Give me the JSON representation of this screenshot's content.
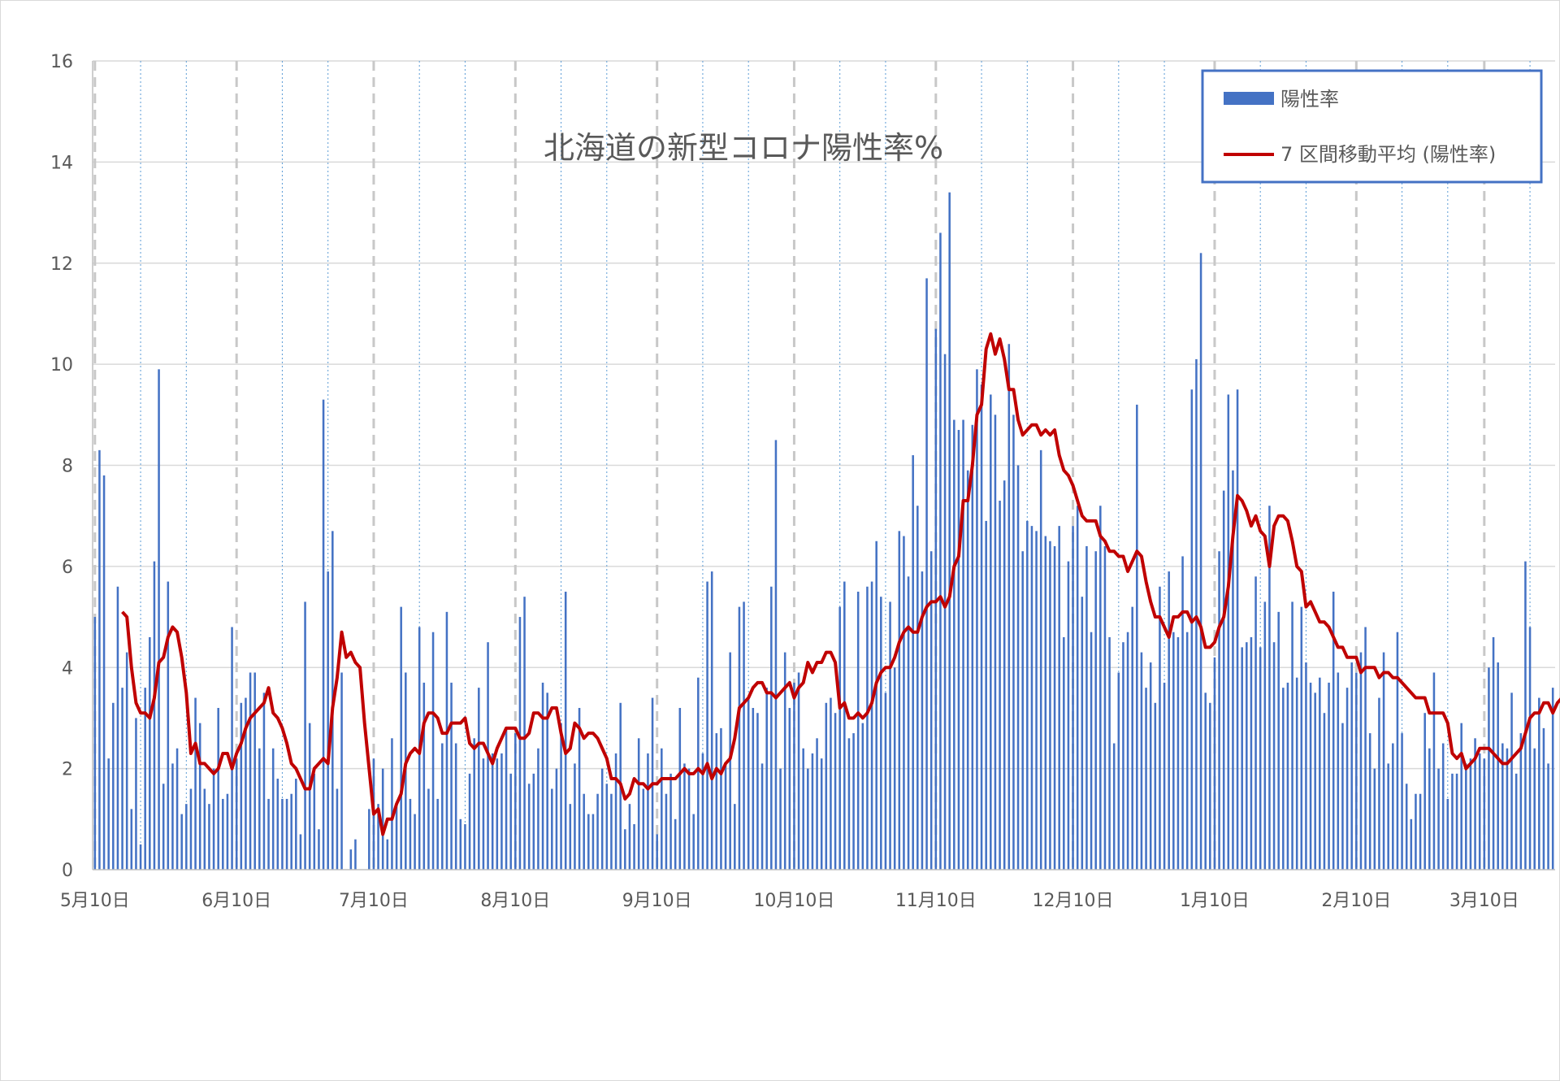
{
  "chart_data": {
    "type": "bar",
    "title": "北海道の新型コロナ陽性率%",
    "xlabel": "",
    "ylabel": "",
    "ylim": [
      0,
      16
    ],
    "yticks": [
      0,
      2,
      4,
      6,
      8,
      10,
      12,
      14,
      16
    ],
    "x_tick_labels": [
      "5月10日",
      "6月10日",
      "7月10日",
      "8月10日",
      "9月10日",
      "10月10日",
      "11月10日",
      "12月10日",
      "1月10日",
      "2月10日",
      "3月10日"
    ],
    "x_tick_day_index": [
      0,
      31,
      61,
      92,
      123,
      153,
      184,
      214,
      245,
      276,
      304
    ],
    "grid": "horizontal",
    "legend": {
      "position": "top-right",
      "entries": [
        "陽性率",
        "7 区間移動平均 (陽性率)"
      ]
    },
    "colors": {
      "bar": "#4472c4",
      "line": "#c00000",
      "legend_border": "#4472c4"
    },
    "series": [
      {
        "name": "陽性率",
        "type": "bar",
        "values": [
          5.0,
          8.3,
          7.8,
          2.2,
          3.3,
          5.6,
          3.6,
          4.3,
          1.2,
          3.0,
          0.5,
          3.6,
          4.6,
          6.1,
          9.9,
          1.7,
          5.7,
          2.1,
          2.4,
          1.1,
          1.3,
          1.6,
          3.4,
          2.9,
          1.6,
          1.3,
          2.0,
          3.2,
          1.4,
          1.5,
          4.8,
          2.2,
          3.3,
          3.4,
          3.9,
          3.9,
          2.4,
          3.5,
          1.4,
          2.4,
          1.8,
          1.4,
          1.4,
          1.5,
          1.8,
          0.7,
          5.3,
          2.9,
          1.9,
          0.8,
          9.3,
          5.9,
          6.7,
          1.6,
          3.9,
          0.0,
          0.4,
          0.6,
          0.0,
          0.0,
          1.2,
          2.2,
          1.3,
          2.0,
          0.6,
          2.6,
          1.3,
          5.2,
          3.9,
          1.4,
          1.1,
          4.8,
          3.7,
          1.6,
          4.7,
          1.4,
          2.5,
          5.1,
          3.7,
          2.5,
          1.0,
          0.9,
          1.9,
          2.6,
          3.6,
          2.2,
          4.5,
          2.3,
          2.2,
          2.3,
          2.8,
          1.9,
          2.7,
          5.0,
          5.4,
          1.7,
          1.9,
          2.4,
          3.7,
          3.5,
          1.6,
          2.0,
          2.9,
          5.5,
          1.3,
          2.1,
          3.2,
          1.5,
          1.1,
          1.1,
          1.5,
          2.0,
          1.7,
          1.5,
          2.3,
          3.3,
          0.8,
          1.3,
          0.9,
          2.6,
          1.6,
          2.3,
          3.4,
          0.7,
          2.4,
          1.5,
          1.9,
          1.0,
          3.2,
          2.1,
          2.0,
          1.1,
          3.8,
          2.3,
          5.7,
          5.9,
          2.7,
          2.8,
          2.1,
          4.3,
          1.3,
          5.2,
          5.3,
          3.4,
          3.2,
          3.1,
          2.1,
          3.6,
          5.6,
          8.5,
          2.0,
          4.3,
          3.2,
          3.7,
          3.9,
          2.4,
          2.0,
          2.3,
          2.6,
          2.2,
          3.3,
          3.4,
          3.1,
          5.2,
          5.7,
          2.6,
          2.7,
          5.5,
          2.9,
          5.6,
          5.7,
          6.5,
          5.4,
          3.5,
          5.3,
          4.0,
          6.7,
          6.6,
          5.8,
          8.2,
          7.2,
          5.9,
          11.7,
          6.3,
          10.7,
          12.6,
          10.2,
          13.4,
          8.9,
          8.7,
          8.9,
          7.9,
          8.8,
          9.9,
          9.6,
          6.9,
          9.4,
          9.0,
          7.3,
          7.7,
          10.4,
          9.0,
          8.0,
          6.3,
          6.9,
          6.8,
          6.7,
          8.3,
          6.6,
          6.5,
          6.4,
          6.8,
          4.6,
          6.1,
          6.8,
          7.2,
          5.4,
          6.4,
          4.7,
          6.3,
          7.2,
          6.4,
          4.6,
          2.5,
          3.9,
          4.5,
          4.7,
          5.2,
          9.2,
          4.3,
          3.6,
          4.1,
          3.3,
          5.6,
          3.7,
          5.9,
          4.7,
          4.6,
          6.2,
          4.7,
          9.5,
          10.1,
          12.2,
          3.5,
          3.3,
          4.2,
          6.3,
          7.5,
          9.4,
          7.9,
          9.5,
          4.4,
          4.5,
          4.6,
          5.8,
          4.4,
          5.3,
          7.2,
          4.5,
          5.1,
          3.6,
          3.7,
          5.3,
          3.8,
          5.2,
          4.1,
          3.7,
          3.5,
          3.8,
          3.1,
          3.7,
          5.5,
          3.9,
          2.9,
          3.6,
          4.1,
          3.9,
          4.3,
          4.8,
          2.7,
          2.0,
          3.4,
          4.3,
          2.1,
          2.5,
          4.7,
          2.7,
          1.7,
          1.0,
          1.5,
          1.5,
          3.1,
          2.4,
          3.9,
          2.0,
          2.5,
          1.4,
          1.9,
          1.9,
          2.9,
          2.1,
          2.2,
          2.6,
          2.3,
          2.2,
          4.0,
          4.6,
          4.1,
          2.5,
          2.4,
          3.5,
          1.9,
          2.7,
          6.1,
          4.8,
          2.4,
          3.4,
          2.8,
          2.1,
          3.6
        ]
      },
      {
        "name": "7 区間移動平均 (陽性率)",
        "type": "line",
        "start_index": 6,
        "values": [
          5.1,
          5.0,
          4.0,
          3.3,
          3.1,
          3.1,
          3.0,
          3.4,
          4.1,
          4.2,
          4.6,
          4.8,
          4.7,
          4.2,
          3.5,
          2.3,
          2.5,
          2.1,
          2.1,
          2.0,
          1.9,
          2.0,
          2.3,
          2.3,
          2.0,
          2.3,
          2.5,
          2.8,
          3.0,
          3.1,
          3.2,
          3.3,
          3.6,
          3.1,
          3.0,
          2.8,
          2.5,
          2.1,
          2.0,
          1.8,
          1.6,
          1.6,
          2.0,
          2.1,
          2.2,
          2.1,
          3.2,
          3.8,
          4.7,
          4.2,
          4.3,
          4.1,
          4.0,
          2.9,
          2.0,
          1.1,
          1.2,
          0.7,
          1.0,
          1.0,
          1.3,
          1.5,
          2.1,
          2.3,
          2.4,
          2.3,
          2.9,
          3.1,
          3.1,
          3.0,
          2.7,
          2.7,
          2.9,
          2.9,
          2.9,
          3.0,
          2.5,
          2.4,
          2.5,
          2.5,
          2.3,
          2.1,
          2.4,
          2.6,
          2.8,
          2.8,
          2.8,
          2.6,
          2.6,
          2.7,
          3.1,
          3.1,
          3.0,
          3.0,
          3.2,
          3.2,
          2.7,
          2.3,
          2.4,
          2.9,
          2.8,
          2.6,
          2.7,
          2.7,
          2.6,
          2.4,
          2.2,
          1.8,
          1.8,
          1.7,
          1.4,
          1.5,
          1.8,
          1.7,
          1.7,
          1.6,
          1.7,
          1.7,
          1.8,
          1.8,
          1.8,
          1.8,
          1.9,
          2.0,
          1.9,
          1.9,
          2.0,
          1.9,
          2.1,
          1.8,
          2.0,
          1.9,
          2.1,
          2.2,
          2.6,
          3.2,
          3.3,
          3.4,
          3.6,
          3.7,
          3.7,
          3.5,
          3.5,
          3.4,
          3.5,
          3.6,
          3.7,
          3.4,
          3.6,
          3.7,
          4.1,
          3.9,
          4.1,
          4.1,
          4.3,
          4.3,
          4.1,
          3.2,
          3.3,
          3.0,
          3.0,
          3.1,
          3.0,
          3.1,
          3.3,
          3.7,
          3.9,
          4.0,
          4.0,
          4.2,
          4.5,
          4.7,
          4.8,
          4.7,
          4.7,
          5.0,
          5.2,
          5.3,
          5.3,
          5.4,
          5.2,
          5.4,
          6.0,
          6.2,
          7.3,
          7.3,
          8.0,
          9.0,
          9.2,
          10.3,
          10.6,
          10.2,
          10.5,
          10.1,
          9.5,
          9.5,
          8.9,
          8.6,
          8.7,
          8.8,
          8.8,
          8.6,
          8.7,
          8.6,
          8.7,
          8.2,
          7.9,
          7.8,
          7.6,
          7.3,
          7.0,
          6.9,
          6.9,
          6.9,
          6.6,
          6.5,
          6.3,
          6.3,
          6.2,
          6.2,
          5.9,
          6.1,
          6.3,
          6.2,
          5.7,
          5.3,
          5.0,
          5.0,
          4.8,
          4.6,
          5.0,
          5.0,
          5.1,
          5.1,
          4.9,
          5.0,
          4.8,
          4.4,
          4.4,
          4.5,
          4.8,
          5.0,
          5.6,
          6.6,
          7.4,
          7.3,
          7.1,
          6.8,
          7.0,
          6.7,
          6.6,
          6.0,
          6.8,
          7.0,
          7.0,
          6.9,
          6.5,
          6.0,
          5.9,
          5.2,
          5.3,
          5.1,
          4.9,
          4.9,
          4.8,
          4.6,
          4.4,
          4.4,
          4.2,
          4.2,
          4.2,
          3.9,
          4.0,
          4.0,
          4.0,
          3.8,
          3.9,
          3.9,
          3.8,
          3.8,
          3.7,
          3.6,
          3.5,
          3.4,
          3.4,
          3.4,
          3.1,
          3.1,
          3.1,
          3.1,
          2.9,
          2.3,
          2.2,
          2.3,
          2.0,
          2.1,
          2.2,
          2.4,
          2.4,
          2.4,
          2.3,
          2.2,
          2.1,
          2.1,
          2.2,
          2.3,
          2.4,
          2.7,
          3.0,
          3.1,
          3.1,
          3.3,
          3.3,
          3.1,
          3.3,
          3.4,
          3.4,
          3.5,
          3.5,
          3.5,
          3.6
        ]
      }
    ]
  }
}
